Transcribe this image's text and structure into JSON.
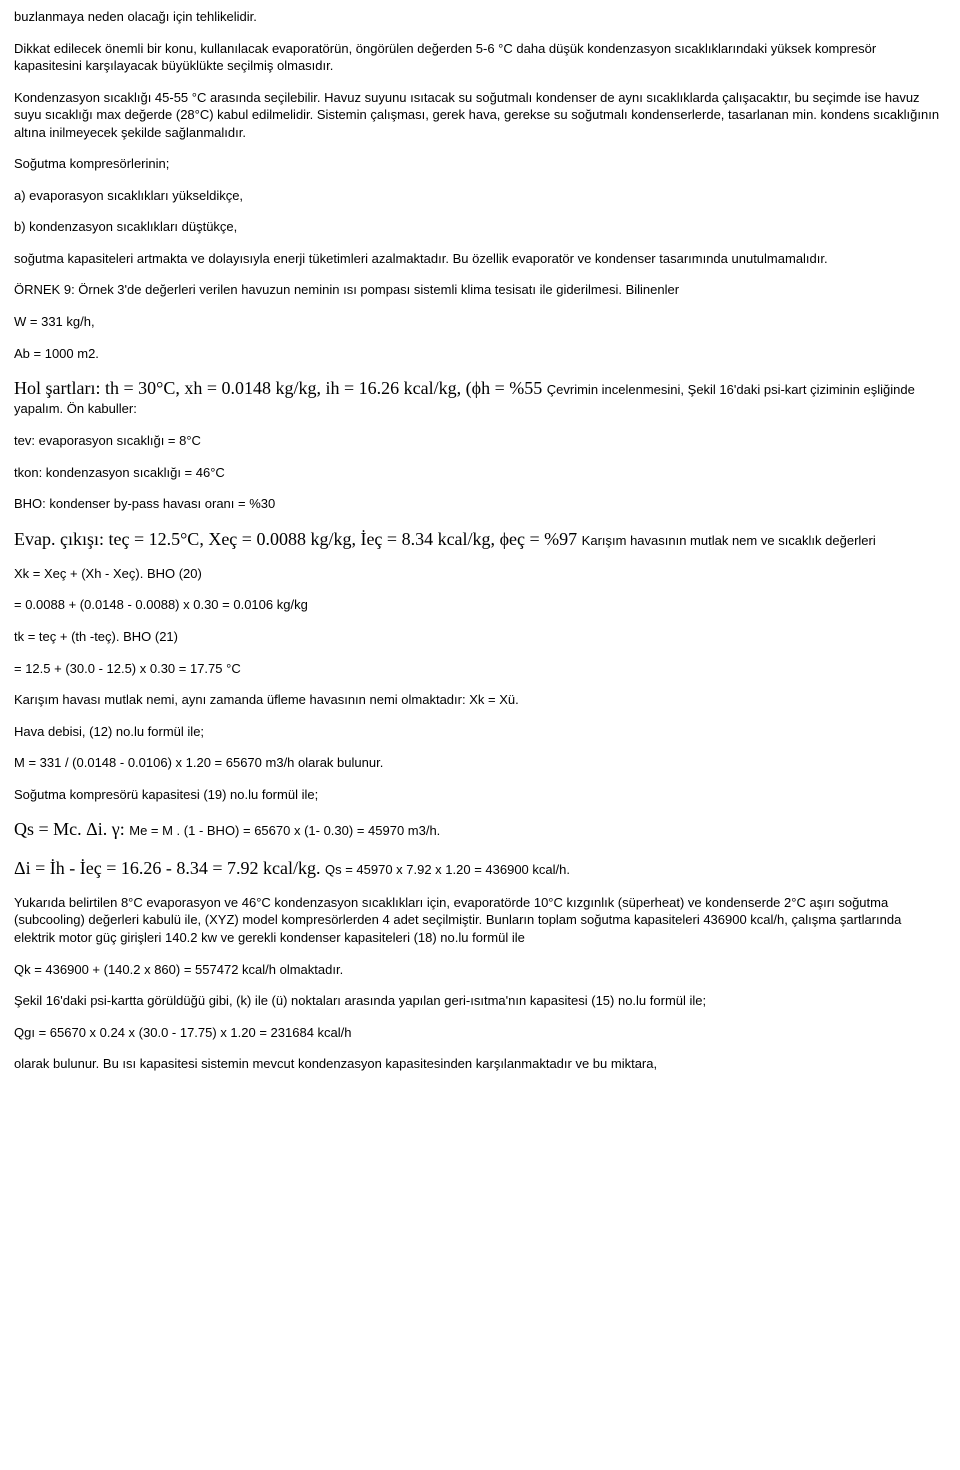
{
  "p1": "buzlanmaya neden olacağı için tehlikelidir.",
  "p2": "Dikkat edilecek önemli bir konu, kullanılacak evaporatörün, öngörülen değerden 5-6 °C daha düşük kondenzasyon sıcaklıklarındaki yüksek kompresör kapasitesini karşılayacak büyüklükte seçilmiş olmasıdır.",
  "p3": "Kondenzasyon sıcaklığı 45-55 °C arasında seçilebilir. Havuz suyunu ısıtacak su soğutmalı kondenser de aynı sıcaklıklarda çalışacaktır, bu seçimde ise havuz suyu sıcaklığı max değerde (28°C) kabul edilmelidir. Sistemin çalışması, gerek hava, gerekse su soğutmalı kondenserlerde, tasarlanan min. kondens sıcaklığının altına inilmeyecek şekilde sağlanmalıdır.",
  "p4": "Soğutma kompresörlerinin;",
  "p5": "a) evaporasyon sıcaklıkları yükseldikçe,",
  "p6": "b) kondenzasyon sıcaklıkları düştükçe,",
  "p7": "soğutma kapasiteleri artmakta ve dolayısıyla enerji tüketimleri azalmaktadır. Bu özellik evaporatör ve kondenser tasarımında unutulmamalıdır.",
  "p8": "ÖRNEK 9: Örnek 3'de değerleri verilen havuzun neminin ısı pompası sistemli klima tesisatı ile giderilmesi. Bilinenler",
  "p9": "W = 331 kg/h,",
  "p10": "Ab = 1000 m2.",
  "hol1": "Hol şartları: th = 30°C, xh = 0.0148 kg/kg, ih = 16.26 kcal/kg, (",
  "hol2": "h = %55 ",
  "hol3": "Çevrimin incelenmesini, Şekil 16'daki psi-kart çiziminin eşliğinde yapalım. Ön kabuller:",
  "p12": "tev: evaporasyon sıcaklığı = 8°C",
  "p13": "tkon: kondenzasyon sıcaklığı = 46°C",
  "p14": "BHO: kondenser by-pass havası oranı = %30",
  "evap1": "Evap. çıkışı: teç = 12.5°C, Xeç = 0.0088 kg/kg, İeç = 8.34 kcal/kg, ",
  "evap2": "eç = %97 ",
  "evap3": "Karışım havasının mutlak nem ve sıcaklık değerleri",
  "p16": "Xk = Xeç + (Xh - Xeç). BHO (20)",
  "p17": "= 0.0088 + (0.0148 - 0.0088) x 0.30 = 0.0106 kg/kg",
  "p18": "tk = teç + (th -teç). BHO (21)",
  "p19": "= 12.5 + (30.0 - 12.5) x 0.30 = 17.75 °C",
  "p20": "Karışım havası mutlak nemi, aynı zamanda üfleme havasının nemi olmaktadır: Xk = Xü.",
  "p21": "Hava debisi, (12) no.lu formül ile;",
  "p22": "M = 331 / (0.0148 - 0.0106) x 1.20 = 65670 m3/h olarak bulunur.",
  "p23": "Soğutma kompresörü kapasitesi (19) no.lu formül ile;",
  "qs1": "Qs = Mc. ",
  "qs2": "i. ",
  "qs3": ": ",
  "qs4": "Me = M . (1 - BHO) = 65670 x (1- 0.30) = 45970 m3/h.",
  "di1": "i = İh - İeç = 16.26 - 8.34 = 7.92 kcal/kg. ",
  "di2": "Qs = 45970 x 7.92 x 1.20 = 436900 kcal/h.",
  "p26": "Yukarıda belirtilen 8°C evaporasyon ve 46°C kondenzasyon sıcaklıkları için, evaporatörde 10°C kızgınlık (süperheat) ve kondenserde 2°C aşırı soğutma (subcooling) değerleri kabulü ile, (XYZ) model kompresörlerden 4 adet seçilmiştir. Bunların toplam soğutma kapasiteleri 436900 kcal/h, çalışma şartlarında elektrik motor güç girişleri 140.2 kw ve gerekli kondenser kapasiteleri (18) no.lu formül ile",
  "p27": "Qk = 436900 + (140.2 x 860) = 557472 kcal/h olmaktadır.",
  "p28": "Şekil 16'daki psi-kartta görüldüğü gibi, (k) ile (ü) noktaları arasında yapılan geri-ısıtma'nın kapasitesi (15) no.lu formül ile;",
  "p29": "Qgı = 65670 x 0.24 x (30.0 - 17.75) x 1.20 = 231684 kcal/h",
  "p30": "olarak bulunur. Bu ısı kapasitesi sistemin mevcut kondenzasyon kapasitesinden karşılanmaktadır ve bu miktara,",
  "phi": "ϕ",
  "delta": "Δ",
  "gamma": "γ"
}
